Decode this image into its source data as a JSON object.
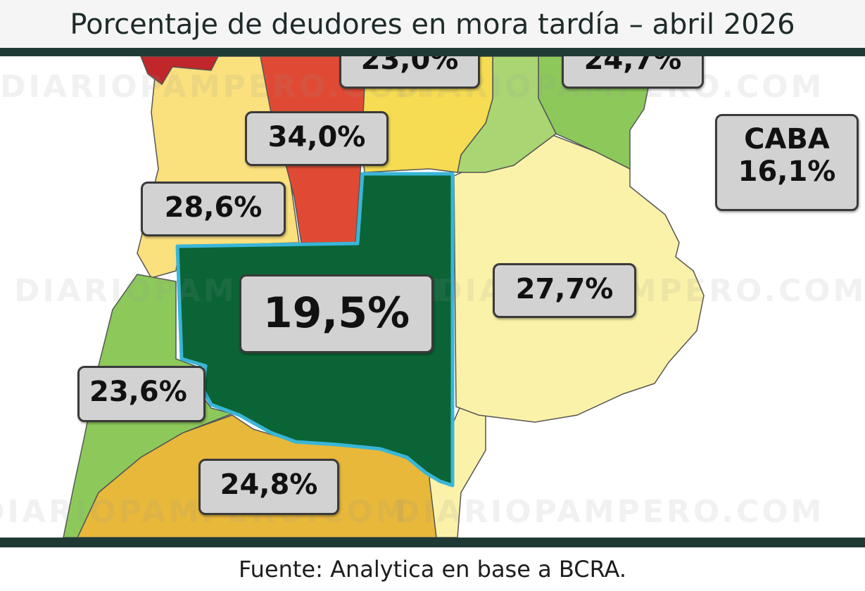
{
  "header": {
    "title": "Porcentaje de deudores en mora tardía – abril 2026"
  },
  "map": {
    "labels": {
      "top_partial_left": "23,0%",
      "top_partial_right": "24,7%",
      "red_corridor": "34,0%",
      "west_north": "28,6%",
      "highlighted": "19,5%",
      "east": "27,7%",
      "west_south": "23,6%",
      "south": "24,8%",
      "caba_name": "CABA",
      "caba_value": "16,1%"
    },
    "watermark": "DIARIOPAMPERO.COM",
    "colors": {
      "highlight": "#0b6436",
      "highlight_border": "#39b6d8",
      "red": "#e04a34",
      "dark_red": "#c0262a",
      "pale_yellow": "#fbf2a9",
      "light_yellow": "#fbe07e",
      "yellow": "#f5dc52",
      "light_green": "#a9d673",
      "green": "#8cc95a",
      "orange": "#e8b83a"
    }
  },
  "footer": {
    "source": "Fuente: Analytica en base a BCRA."
  }
}
